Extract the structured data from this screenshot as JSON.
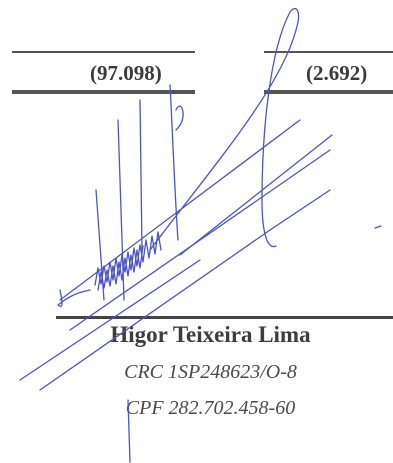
{
  "figures": {
    "col1_value": "(97.098)",
    "col2_value": "(2.692)"
  },
  "signatory": {
    "name": "Higor Teixeira Lima",
    "crc": "CRC 1SP248623/O-8",
    "cpf": "CPF 282.702.458-60"
  },
  "colors": {
    "rule": "#555555",
    "ink": "#3a3a3a",
    "signature_ink": "#4b55c8"
  },
  "icons": {
    "signature": "handwritten-signature"
  }
}
